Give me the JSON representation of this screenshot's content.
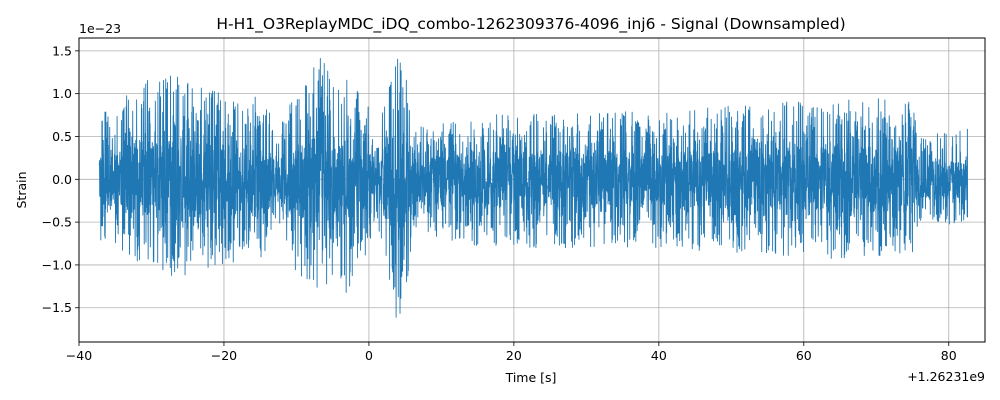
{
  "chart_data": {
    "type": "line",
    "title": "H-H1_O3ReplayMDC_iDQ_combo-1262309376-4096_inj6 - Signal (Downsampled)",
    "xlabel": "Time [s]",
    "ylabel": "Strain",
    "x_offset_label": "+1.26231e9",
    "y_scale_label": "1e−23",
    "xlim": [
      -40,
      85
    ],
    "ylim": [
      -1.9,
      1.65
    ],
    "xticks": [
      -40,
      -20,
      0,
      20,
      40,
      60,
      80
    ],
    "xtick_labels": [
      "−40",
      "−20",
      "0",
      "20",
      "40",
      "60",
      "80"
    ],
    "yticks": [
      -1.5,
      -1.0,
      -0.5,
      0.0,
      0.5,
      1.0,
      1.5
    ],
    "ytick_labels": [
      "−1.5",
      "−1.0",
      "−0.5",
      "0.0",
      "0.5",
      "1.0",
      "1.5"
    ],
    "grid": true,
    "series": [
      {
        "color": "#1f77b4",
        "x_range": [
          -37.2,
          82.6
        ],
        "envelope": [
          {
            "x": -37.2,
            "max": 0.75,
            "min": -0.7
          },
          {
            "x": -30,
            "max": 1.2,
            "min": -1.1
          },
          {
            "x": -26,
            "max": 1.25,
            "min": -1.15
          },
          {
            "x": -20,
            "max": 1.0,
            "min": -1.0
          },
          {
            "x": -14,
            "max": 0.95,
            "min": -0.9
          },
          {
            "x": -13,
            "max": 0.5,
            "min": -0.45
          },
          {
            "x": -10,
            "max": 1.1,
            "min": -1.1
          },
          {
            "x": -6.5,
            "max": 1.45,
            "min": -1.3
          },
          {
            "x": -3,
            "max": 1.25,
            "min": -1.4
          },
          {
            "x": 0,
            "max": 0.85,
            "min": -0.8
          },
          {
            "x": 1,
            "max": 0.45,
            "min": -0.45
          },
          {
            "x": 3,
            "max": 1.3,
            "min": -1.5
          },
          {
            "x": 4,
            "max": 1.5,
            "min": -1.75
          },
          {
            "x": 5,
            "max": 1.4,
            "min": -1.5
          },
          {
            "x": 6,
            "max": 0.6,
            "min": -0.6
          },
          {
            "x": 15,
            "max": 0.75,
            "min": -0.8
          },
          {
            "x": 40,
            "max": 0.8,
            "min": -0.8
          },
          {
            "x": 55,
            "max": 0.9,
            "min": -0.9
          },
          {
            "x": 70,
            "max": 0.95,
            "min": -0.95
          },
          {
            "x": 75,
            "max": 0.9,
            "min": -0.85
          },
          {
            "x": 76,
            "max": 0.5,
            "min": -0.5
          },
          {
            "x": 82.6,
            "max": 0.6,
            "min": -0.6
          }
        ]
      }
    ]
  }
}
